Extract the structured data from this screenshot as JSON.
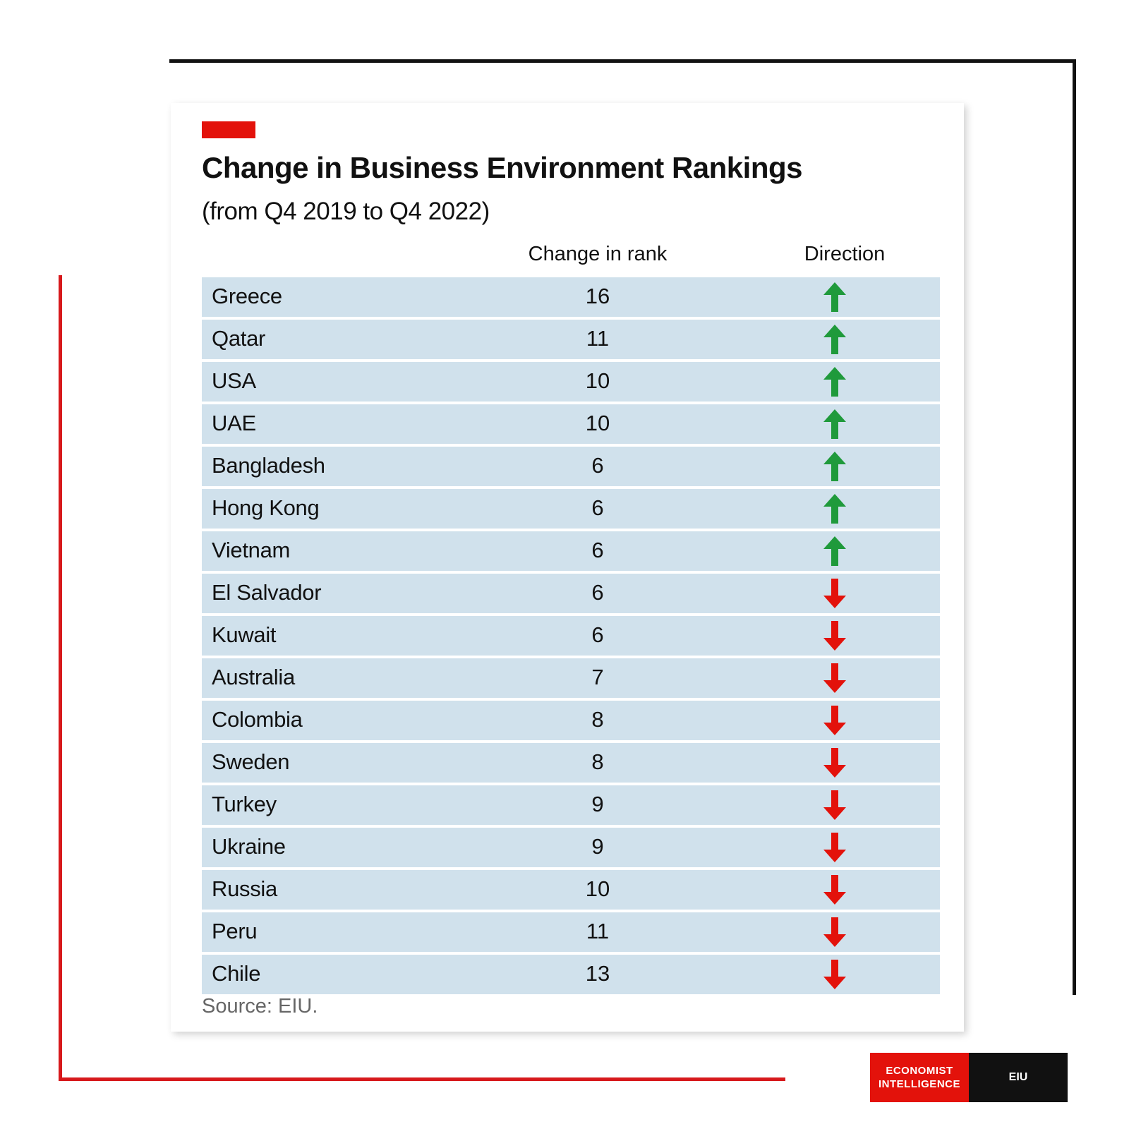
{
  "chart_data": {
    "type": "table",
    "title": "Change in Business Environment Rankings",
    "subtitle": "(from Q4 2019 to Q4 2022)",
    "columns": [
      "Change in rank",
      "Direction"
    ],
    "rows": [
      {
        "country": "Greece",
        "change": "16",
        "direction": "up"
      },
      {
        "country": "Qatar",
        "change": "11",
        "direction": "up"
      },
      {
        "country": "USA",
        "change": "10",
        "direction": "up"
      },
      {
        "country": "UAE",
        "change": "10",
        "direction": "up"
      },
      {
        "country": "Bangladesh",
        "change": "6",
        "direction": "up"
      },
      {
        "country": "Hong Kong",
        "change": "6",
        "direction": "up"
      },
      {
        "country": "Vietnam",
        "change": "6",
        "direction": "up"
      },
      {
        "country": "El Salvador",
        "change": "6",
        "direction": "down"
      },
      {
        "country": "Kuwait",
        "change": "6",
        "direction": "down"
      },
      {
        "country": "Australia",
        "change": "7",
        "direction": "down"
      },
      {
        "country": "Colombia",
        "change": "8",
        "direction": "down"
      },
      {
        "country": "Sweden",
        "change": "8",
        "direction": "down"
      },
      {
        "country": "Turkey",
        "change": "9",
        "direction": "down"
      },
      {
        "country": "Ukraine",
        "change": "9",
        "direction": "down"
      },
      {
        "country": "Russia",
        "change": "10",
        "direction": "down"
      },
      {
        "country": "Peru",
        "change": "11",
        "direction": "down"
      },
      {
        "country": "Chile",
        "change": "13",
        "direction": "down"
      }
    ],
    "source": "Source: EIU."
  },
  "colors": {
    "row_background": "#d0e1ec",
    "up_arrow": "#1f9a3b",
    "down_arrow": "#e3120b",
    "accent_red": "#e3120b"
  },
  "icons": {
    "up": "arrow-up-icon",
    "down": "arrow-down-icon"
  },
  "logo": {
    "line1": "ECONOMIST",
    "line2": "INTELLIGENCE",
    "short": "EIU"
  }
}
